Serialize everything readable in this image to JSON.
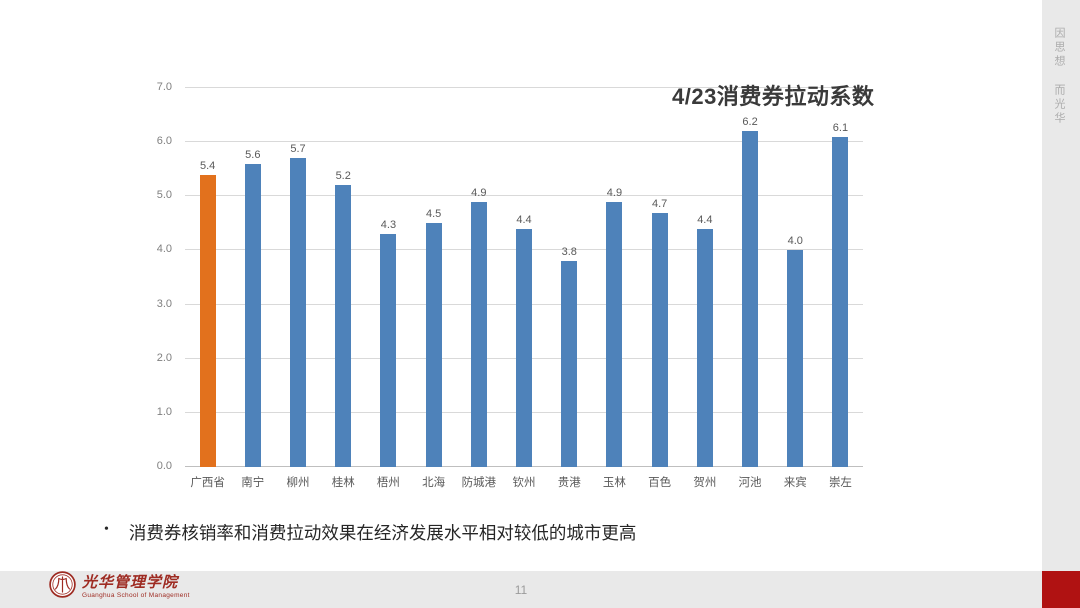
{
  "slide": {
    "motto_vertical": "因思想 而光华",
    "bullet_marker": "•",
    "bullet_text": "消费券核销率和消费拉动效果在经济发展水平相对较低的城市更高",
    "page_number": "11",
    "footer": {
      "logo_title": "光华管理学院",
      "logo_subtitle": "Guanghua School of Management"
    },
    "colors": {
      "accent_red": "#B01212",
      "logo_red": "#9E2B22",
      "strip_gray": "#E9E9E9"
    }
  },
  "chart_data": {
    "type": "bar",
    "title": "4/23消费券拉动系数",
    "categories": [
      "广西省",
      "南宁",
      "柳州",
      "桂林",
      "梧州",
      "北海",
      "防城港",
      "钦州",
      "贵港",
      "玉林",
      "百色",
      "贺州",
      "河池",
      "来宾",
      "崇左"
    ],
    "values": [
      5.4,
      5.6,
      5.7,
      5.2,
      4.3,
      4.5,
      4.9,
      4.4,
      3.8,
      4.9,
      4.7,
      4.4,
      6.2,
      4.0,
      6.1
    ],
    "highlight_index": 0,
    "colors": {
      "default": "#4E82BA",
      "highlight": "#E2711D"
    },
    "ylim": [
      0,
      7
    ],
    "ytick_interval": 1,
    "ytick_decimals": 1,
    "grid": true,
    "value_labels": true,
    "legend": "none",
    "xlabel": "",
    "ylabel": ""
  }
}
